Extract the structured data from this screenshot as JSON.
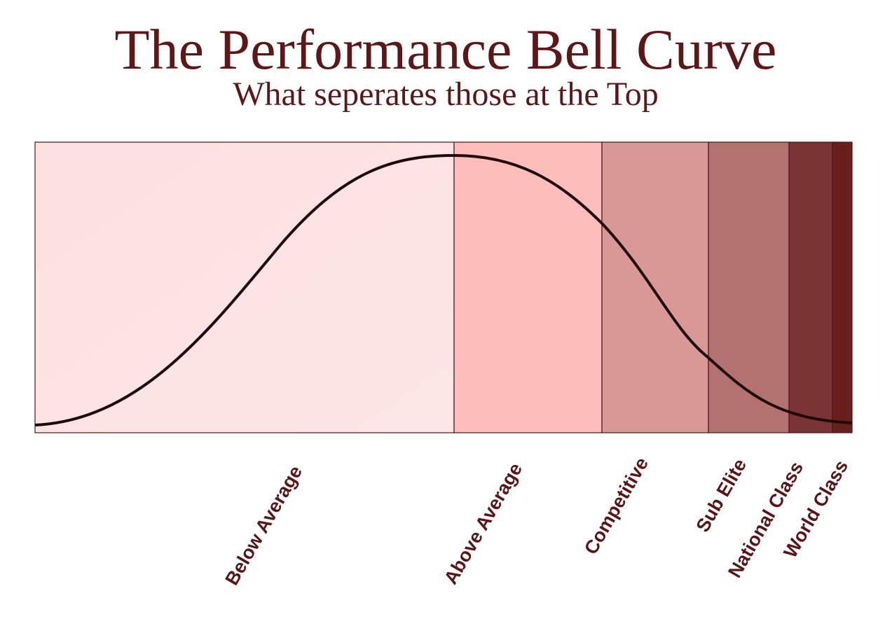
{
  "header": {
    "title": "The Performance Bell Curve",
    "subtitle": "What seperates those at the Top"
  },
  "zones": [
    {
      "label": "Below Average"
    },
    {
      "label": "Above Average"
    },
    {
      "label": "Competitive"
    },
    {
      "label": "Sub Elite"
    },
    {
      "label": "National Class"
    },
    {
      "label": "World Class"
    }
  ]
}
